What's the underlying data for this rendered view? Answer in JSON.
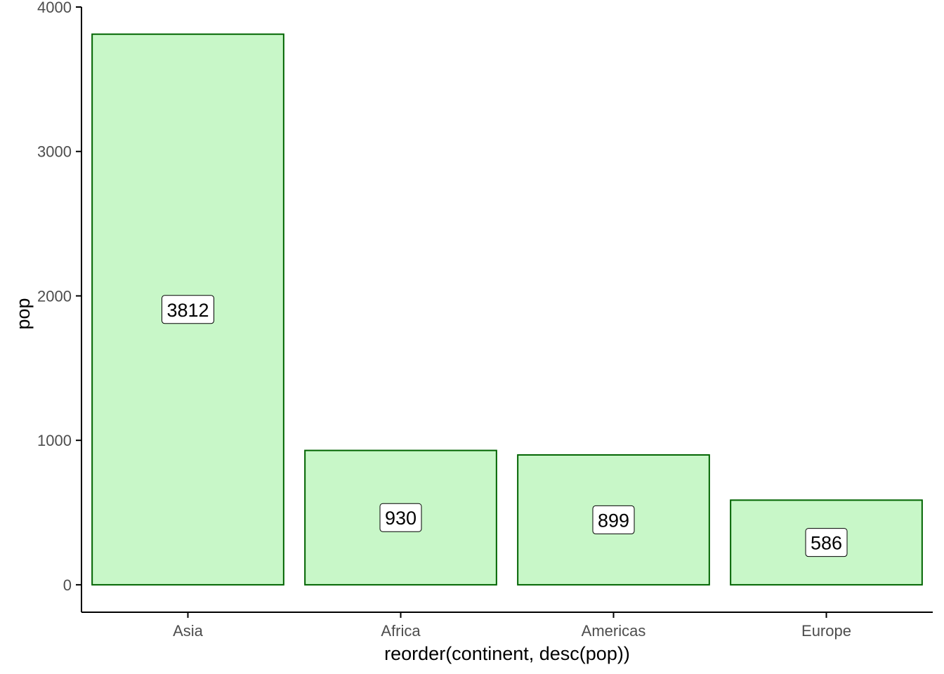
{
  "chart_data": {
    "type": "bar",
    "categories": [
      "Asia",
      "Africa",
      "Americas",
      "Europe"
    ],
    "values": [
      3812,
      930,
      899,
      586
    ],
    "data_labels": [
      "3812",
      "930",
      "899",
      "586"
    ],
    "title": "",
    "xlabel": "reorder(continent, desc(pop))",
    "ylabel": "pop",
    "ylim": [
      -190,
      4000
    ],
    "yticks": [
      0,
      1000,
      2000,
      3000,
      4000
    ],
    "ytick_labels": [
      "0",
      "1000",
      "2000",
      "3000",
      "4000"
    ],
    "grid": false,
    "legend": "none",
    "colors": {
      "bar_fill": "#c8f7c8",
      "bar_stroke": "#006400",
      "axis": "#000000",
      "tick_text": "#4d4d4d",
      "label_box_fill": "#ffffff",
      "label_box_stroke": "#000000"
    }
  }
}
